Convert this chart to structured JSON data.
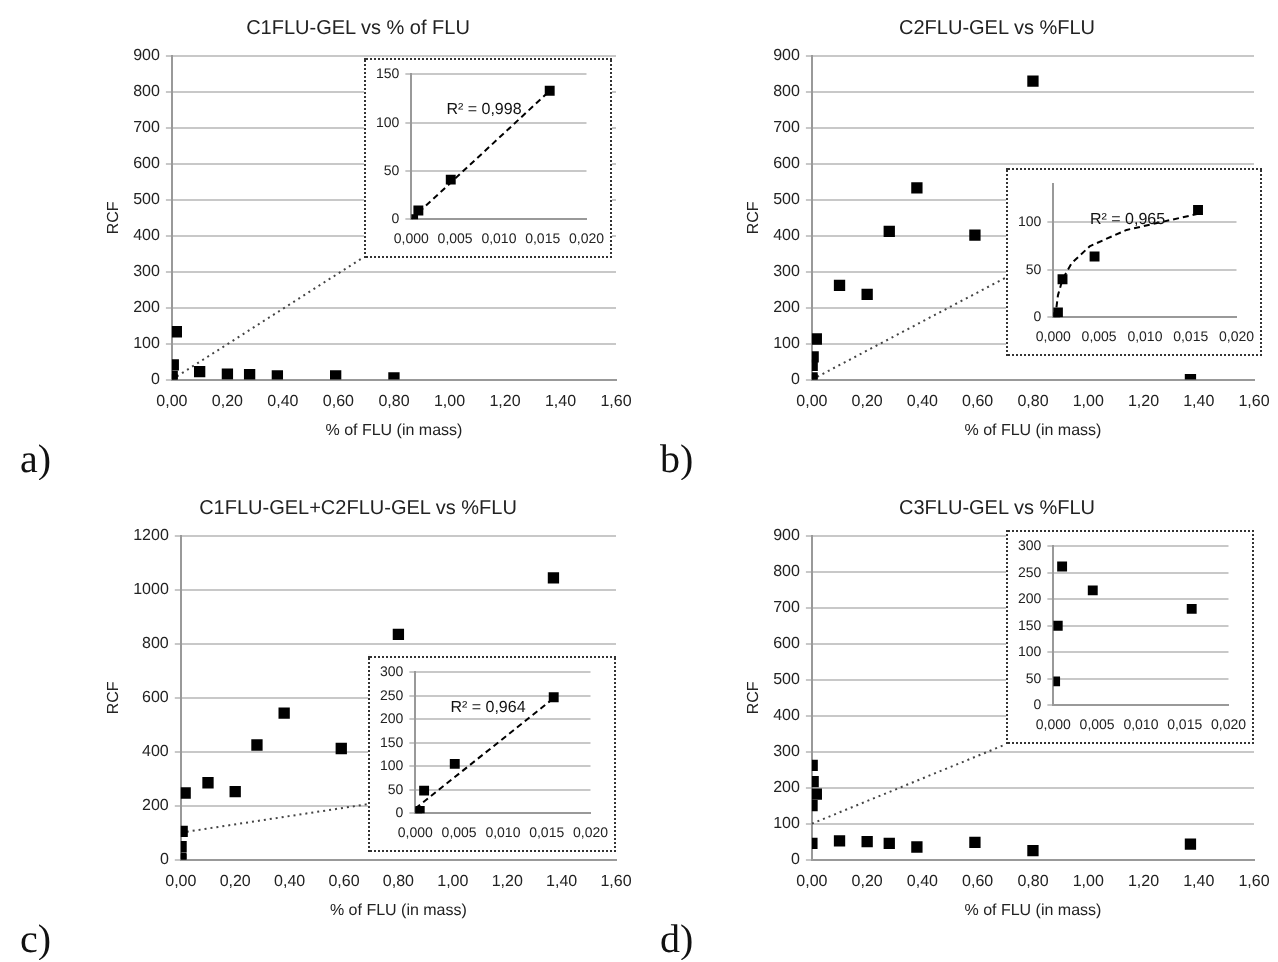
{
  "chart_data": [
    {
      "type": "scatter",
      "title": "C1FLU-GEL vs % of FLU",
      "xlabel": "% of FLU (in mass)",
      "ylabel": "RCF",
      "annotations": [
        "a)"
      ],
      "marker": "square",
      "grid": "y",
      "xlim": [
        0,
        1.6
      ],
      "xticks": [
        {
          "value": 0,
          "label": "0,00"
        },
        {
          "value": 0.2,
          "label": "0,20"
        },
        {
          "value": 0.4,
          "label": "0,40"
        },
        {
          "value": 0.6,
          "label": "0,60"
        },
        {
          "value": 0.8,
          "label": "0,80"
        },
        {
          "value": 1,
          "label": "1,00"
        },
        {
          "value": 1.2,
          "label": "1,20"
        },
        {
          "value": 1.4,
          "label": "1,40"
        },
        {
          "value": 1.6,
          "label": "1,60"
        }
      ],
      "ylim": [
        0,
        900
      ],
      "yticks": [
        0,
        100,
        200,
        300,
        400,
        500,
        600,
        700,
        800,
        900
      ],
      "series": [
        {
          "color": "#000000",
          "x": [
            0,
            0.001,
            0.005,
            0.016,
            0.1,
            0.2,
            0.28,
            0.38,
            0.59,
            0.8
          ],
          "values": [
            0,
            9,
            41,
            133,
            22,
            15,
            14,
            10,
            10,
            5
          ]
        },
        {
          "type": "line",
          "line_style": "dotted",
          "marker": "none",
          "color": "#444444",
          "x": [
            0,
            0.69
          ],
          "values": [
            0,
            340
          ]
        }
      ]
    },
    {
      "type": "scatter",
      "annotations": [
        "R² = 0,998"
      ],
      "marker": "square",
      "grid": "y",
      "xlim": [
        0,
        0.02
      ],
      "xticks": [
        {
          "value": 0,
          "label": "0,000"
        },
        {
          "value": 0.005,
          "label": "0,005"
        },
        {
          "value": 0.01,
          "label": "0,010"
        },
        {
          "value": 0.015,
          "label": "0,015"
        },
        {
          "value": 0.02,
          "label": "0,020"
        }
      ],
      "ylim": [
        0,
        150
      ],
      "yticks": [
        0,
        50,
        100,
        150
      ],
      "series": [
        {
          "color": "#000000",
          "x": [
            0.0002,
            0.0008,
            0.0045,
            0.0158
          ],
          "values": [
            0,
            9,
            41,
            133
          ]
        },
        {
          "type": "line",
          "line_style": "dashed",
          "marker": "none",
          "color": "#000000",
          "x": [
            0,
            0.0158
          ],
          "values": [
            0,
            133
          ]
        }
      ]
    },
    {
      "type": "scatter",
      "title": "C2FLU-GEL vs %FLU",
      "xlabel": "% of FLU (in mass)",
      "ylabel": "RCF",
      "annotations": [
        "b)"
      ],
      "marker": "square",
      "grid": "y",
      "xlim": [
        0,
        1.6
      ],
      "xticks": [
        {
          "value": 0,
          "label": "0,00"
        },
        {
          "value": 0.2,
          "label": "0,20"
        },
        {
          "value": 0.4,
          "label": "0,40"
        },
        {
          "value": 0.6,
          "label": "0,60"
        },
        {
          "value": 0.8,
          "label": "0,80"
        },
        {
          "value": 1,
          "label": "1,00"
        },
        {
          "value": 1.2,
          "label": "1,20"
        },
        {
          "value": 1.4,
          "label": "1,40"
        },
        {
          "value": 1.6,
          "label": "1,60"
        }
      ],
      "ylim": [
        0,
        900
      ],
      "yticks": [
        0,
        100,
        200,
        300,
        400,
        500,
        600,
        700,
        800,
        900
      ],
      "series": [
        {
          "color": "#000000",
          "x": [
            0,
            0.0005,
            0.001,
            0.0045,
            0.016,
            0.1,
            0.2,
            0.28,
            0.38,
            0.59,
            0.8,
            1.37
          ],
          "values": [
            0,
            5,
            40,
            63,
            113,
            262,
            237,
            412,
            533,
            402,
            830,
            0
          ]
        },
        {
          "type": "line",
          "line_style": "dotted",
          "marker": "none",
          "color": "#444444",
          "x": [
            0,
            0.71
          ],
          "values": [
            0,
            287
          ]
        }
      ]
    },
    {
      "type": "scatter",
      "annotations": [
        "R² = 0,965"
      ],
      "marker": "square",
      "grid": "y",
      "xlim": [
        0,
        0.02
      ],
      "xticks": [
        {
          "value": 0,
          "label": "0,000"
        },
        {
          "value": 0.005,
          "label": "0,005"
        },
        {
          "value": 0.01,
          "label": "0,010"
        },
        {
          "value": 0.015,
          "label": "0,015"
        },
        {
          "value": 0.02,
          "label": "0,020"
        }
      ],
      "ylim": [
        0,
        140
      ],
      "yticks": [
        0,
        50,
        100
      ],
      "series": [
        {
          "color": "#000000",
          "x": [
            0.0002,
            0.0005,
            0.001,
            0.0045,
            0.0158
          ],
          "values": [
            0,
            5,
            40,
            64,
            113
          ]
        },
        {
          "type": "line",
          "line_style": "dashed",
          "marker": "none",
          "color": "#000000",
          "x": [
            0.0002,
            0.0005,
            0.001,
            0.002,
            0.004,
            0.008,
            0.0158
          ],
          "values": [
            0,
            23,
            40,
            57,
            75,
            92,
            109
          ]
        }
      ]
    },
    {
      "type": "scatter",
      "title": "C1FLU-GEL+C2FLU-GEL vs %FLU",
      "xlabel": "% of FLU (in mass)",
      "ylabel": "RCF",
      "annotations": [
        "c)"
      ],
      "marker": "square",
      "grid": "y",
      "xlim": [
        0,
        1.6
      ],
      "xticks": [
        {
          "value": 0,
          "label": "0,00"
        },
        {
          "value": 0.2,
          "label": "0,20"
        },
        {
          "value": 0.4,
          "label": "0,40"
        },
        {
          "value": 0.6,
          "label": "0,60"
        },
        {
          "value": 0.8,
          "label": "0,80"
        },
        {
          "value": 1,
          "label": "1,00"
        },
        {
          "value": 1.2,
          "label": "1,20"
        },
        {
          "value": 1.4,
          "label": "1,40"
        },
        {
          "value": 1.6,
          "label": "1,60"
        }
      ],
      "ylim": [
        0,
        1200
      ],
      "yticks": [
        0,
        200,
        400,
        600,
        800,
        1000,
        1200
      ],
      "series": [
        {
          "color": "#000000",
          "x": [
            0,
            0.0005,
            0.001,
            0.005,
            0.016,
            0.1,
            0.2,
            0.28,
            0.38,
            0.59,
            0.8,
            1.37
          ],
          "values": [
            0,
            5,
            48,
            105,
            247,
            285,
            252,
            425,
            543,
            412,
            835,
            1045
          ]
        },
        {
          "type": "line",
          "line_style": "dotted",
          "marker": "none",
          "color": "#444444",
          "x": [
            0,
            0.69
          ],
          "values": [
            100,
            206
          ]
        }
      ]
    },
    {
      "type": "scatter",
      "annotations": [
        "R² = 0,964"
      ],
      "marker": "square",
      "grid": "y",
      "xlim": [
        0,
        0.02
      ],
      "xticks": [
        {
          "value": 0,
          "label": "0,000"
        },
        {
          "value": 0.005,
          "label": "0,005"
        },
        {
          "value": 0.01,
          "label": "0,010"
        },
        {
          "value": 0.015,
          "label": "0,015"
        },
        {
          "value": 0.02,
          "label": "0,020"
        }
      ],
      "ylim": [
        0,
        300
      ],
      "yticks": [
        0,
        50,
        100,
        150,
        200,
        250,
        300
      ],
      "series": [
        {
          "color": "#000000",
          "x": [
            0.0002,
            0.0005,
            0.001,
            0.0045,
            0.0158
          ],
          "values": [
            0,
            5,
            48,
            105,
            247
          ]
        },
        {
          "type": "line",
          "line_style": "dashed",
          "marker": "none",
          "color": "#000000",
          "x": [
            0,
            0.0158
          ],
          "values": [
            10,
            245
          ]
        }
      ]
    },
    {
      "type": "scatter",
      "title": "C3FLU-GEL vs %FLU",
      "xlabel": "% of FLU (in mass)",
      "ylabel": "RCF",
      "annotations": [
        "d)"
      ],
      "marker": "square",
      "grid": "y",
      "xlim": [
        0,
        1.6
      ],
      "xticks": [
        {
          "value": 0,
          "label": "0,00"
        },
        {
          "value": 0.2,
          "label": "0,20"
        },
        {
          "value": 0.4,
          "label": "0,40"
        },
        {
          "value": 0.6,
          "label": "0,60"
        },
        {
          "value": 0.8,
          "label": "0,80"
        },
        {
          "value": 1,
          "label": "1,00"
        },
        {
          "value": 1.2,
          "label": "1,20"
        },
        {
          "value": 1.4,
          "label": "1,40"
        },
        {
          "value": 1.6,
          "label": "1,60"
        }
      ],
      "ylim": [
        0,
        900
      ],
      "yticks": [
        0,
        100,
        200,
        300,
        400,
        500,
        600,
        700,
        800,
        900
      ],
      "series": [
        {
          "color": "#000000",
          "x": [
            0,
            0.0005,
            0.001,
            0.0045,
            0.016,
            0.1,
            0.2,
            0.28,
            0.38,
            0.59,
            0.8,
            1.37
          ],
          "values": [
            45,
            150,
            262,
            217,
            182,
            52,
            50,
            45,
            35,
            48,
            25,
            43
          ]
        },
        {
          "type": "line",
          "line_style": "dotted",
          "marker": "none",
          "color": "#444444",
          "x": [
            0,
            0.7
          ],
          "values": [
            100,
            320
          ]
        }
      ]
    },
    {
      "type": "scatter",
      "marker": "square",
      "grid": "y",
      "xlim": [
        0,
        0.02
      ],
      "xticks": [
        {
          "value": 0,
          "label": "0,000"
        },
        {
          "value": 0.005,
          "label": "0,005"
        },
        {
          "value": 0.01,
          "label": "0,010"
        },
        {
          "value": 0.015,
          "label": "0,015"
        },
        {
          "value": 0.02,
          "label": "0,020"
        }
      ],
      "ylim": [
        0,
        300
      ],
      "yticks": [
        0,
        50,
        100,
        150,
        200,
        250,
        300
      ],
      "series": [
        {
          "color": "#000000",
          "x": [
            0.0002,
            0.0005,
            0.001,
            0.0045,
            0.0158
          ],
          "values": [
            45,
            150,
            262,
            217,
            182
          ]
        }
      ]
    }
  ]
}
